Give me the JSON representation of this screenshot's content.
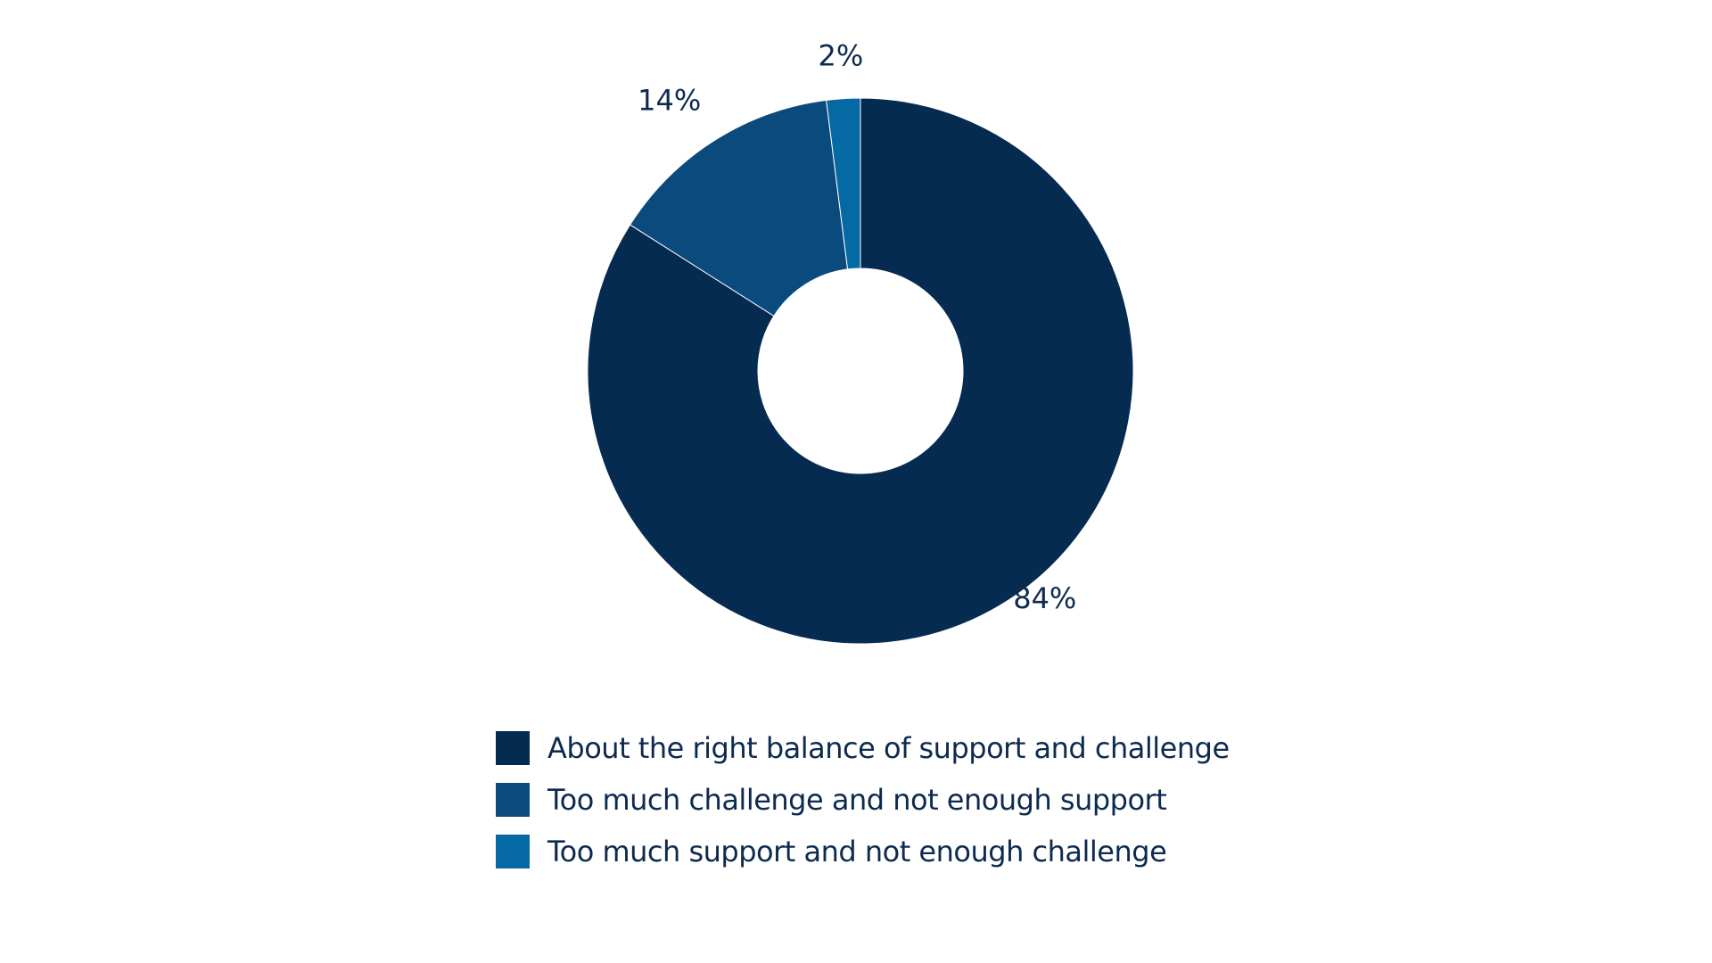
{
  "chart_data": {
    "type": "pie",
    "subtype": "donut",
    "slices": [
      {
        "label": "About the right balance of support and challenge",
        "value": 84,
        "value_label": "84%",
        "color": "#062b50"
      },
      {
        "label": "Too much challenge and not enough support",
        "value": 14,
        "value_label": "14%",
        "color": "#0b4a7d"
      },
      {
        "label": "Too much support and not enough challenge",
        "value": 2,
        "value_label": "2%",
        "color": "#0569a3"
      }
    ],
    "start_angle": "12 o'clock",
    "direction": "clockwise",
    "legend_position": "bottom"
  },
  "legend": {
    "items": [
      {
        "label": "About the right balance of support and challenge",
        "color": "#062b50"
      },
      {
        "label": "Too much challenge and not enough support",
        "color": "#0b4a7d"
      },
      {
        "label": "Too much support and not enough challenge",
        "color": "#0569a3"
      }
    ]
  }
}
